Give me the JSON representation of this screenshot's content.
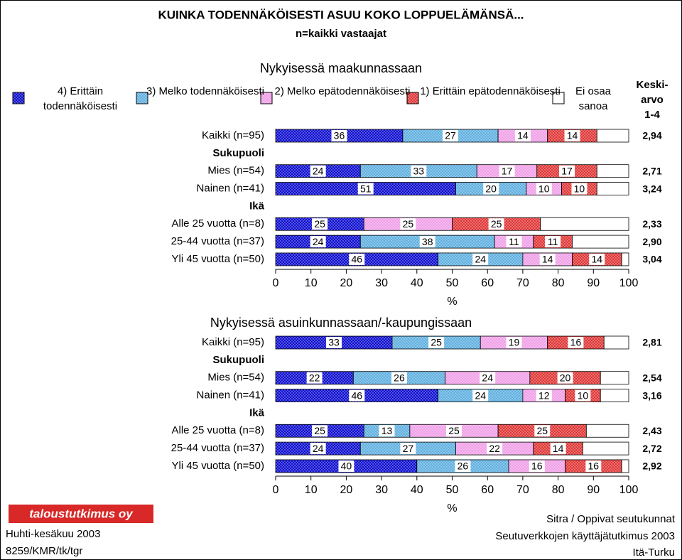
{
  "title": "KUINKA TODENNÄKÖISESTI ASUU KOKO LOPPUELÄMÄNSÄ...",
  "subtitle": "n=kaikki vastaajat",
  "chart_data": [
    {
      "type": "bar",
      "orientation": "horizontal",
      "stacked": true,
      "title": "Nykyisessä maakunnassaan",
      "categories": [
        "Kaikki (n=95)",
        "Sukupuoli",
        "Mies (n=54)",
        "Nainen (n=41)",
        "Ikä",
        "Alle 25 vuotta (n=8)",
        "25-44 vuotta (n=37)",
        "Yli 45 vuotta (n=50)"
      ],
      "series": [
        {
          "name": "4) Erittäin todennäköisesti",
          "color": "#1010d0",
          "values": [
            36,
            null,
            24,
            51,
            null,
            25,
            24,
            46
          ]
        },
        {
          "name": "3) Melko todennäköisesti",
          "color": "#60b0e0",
          "values": [
            27,
            null,
            33,
            20,
            null,
            0,
            38,
            24
          ]
        },
        {
          "name": "2) Melko epätodennäköisesti",
          "color": "#f0a0e8",
          "values": [
            14,
            null,
            17,
            10,
            null,
            25,
            11,
            14
          ]
        },
        {
          "name": "1) Erittäin epätodennäköisesti",
          "color": "#e03838",
          "values": [
            14,
            null,
            17,
            10,
            null,
            25,
            11,
            14
          ]
        },
        {
          "name": "Ei osaa sanoa",
          "color": "#ffffff",
          "show_labels": false,
          "values": [
            9,
            null,
            9,
            9,
            null,
            25,
            16,
            2
          ]
        }
      ],
      "xlim": [
        0,
        100
      ],
      "xticks": [
        0,
        10,
        20,
        30,
        40,
        50,
        60,
        70,
        80,
        90,
        100
      ],
      "xlabel": "%",
      "mean": {
        "label": [
          "Keski-",
          "arvo",
          "1-4"
        ],
        "values": [
          2.94,
          null,
          2.71,
          3.24,
          null,
          2.33,
          2.9,
          3.04
        ],
        "value_labels": [
          "2,94",
          null,
          "2,71",
          "3,24",
          null,
          "2,33",
          "2,90",
          "3,04"
        ]
      }
    },
    {
      "type": "bar",
      "orientation": "horizontal",
      "stacked": true,
      "title": "Nykyisessä asuinkunnassaan/-kaupungissaan",
      "categories": [
        "Kaikki (n=95)",
        "Sukupuoli",
        "Mies (n=54)",
        "Nainen (n=41)",
        "Ikä",
        "Alle 25 vuotta (n=8)",
        "25-44 vuotta (n=37)",
        "Yli 45 vuotta (n=50)"
      ],
      "series": [
        {
          "color": "#1010d0",
          "values": [
            33,
            null,
            22,
            46,
            null,
            25,
            24,
            40
          ]
        },
        {
          "color": "#60b0e0",
          "values": [
            25,
            null,
            26,
            24,
            null,
            13,
            27,
            26
          ]
        },
        {
          "color": "#f0a0e8",
          "values": [
            19,
            null,
            24,
            12,
            null,
            25,
            22,
            16
          ]
        },
        {
          "color": "#e03838",
          "values": [
            16,
            null,
            20,
            10,
            null,
            25,
            14,
            16
          ]
        },
        {
          "color": "#ffffff",
          "show_labels": false,
          "values": [
            7,
            null,
            8,
            8,
            null,
            12,
            13,
            2
          ]
        }
      ],
      "xlim": [
        0,
        100
      ],
      "xticks": [
        0,
        10,
        20,
        30,
        40,
        50,
        60,
        70,
        80,
        90,
        100
      ],
      "xlabel": "%",
      "mean": {
        "values": [
          2.81,
          null,
          2.54,
          3.16,
          null,
          2.43,
          2.72,
          2.92
        ],
        "value_labels": [
          "2,81",
          null,
          "2,54",
          "3,16",
          null,
          "2,43",
          "2,72",
          "2,92"
        ]
      }
    }
  ],
  "footer": {
    "logo": "taloustutkimus oy",
    "left": [
      "Huhti-kesäkuu 2003",
      "8259/KMR/tk/tgr"
    ],
    "right": [
      "Sitra / Oppivat seutukunnat",
      "Seutuverkkojen käyttäjätutkimus 2003",
      "Itä-Turku"
    ]
  }
}
